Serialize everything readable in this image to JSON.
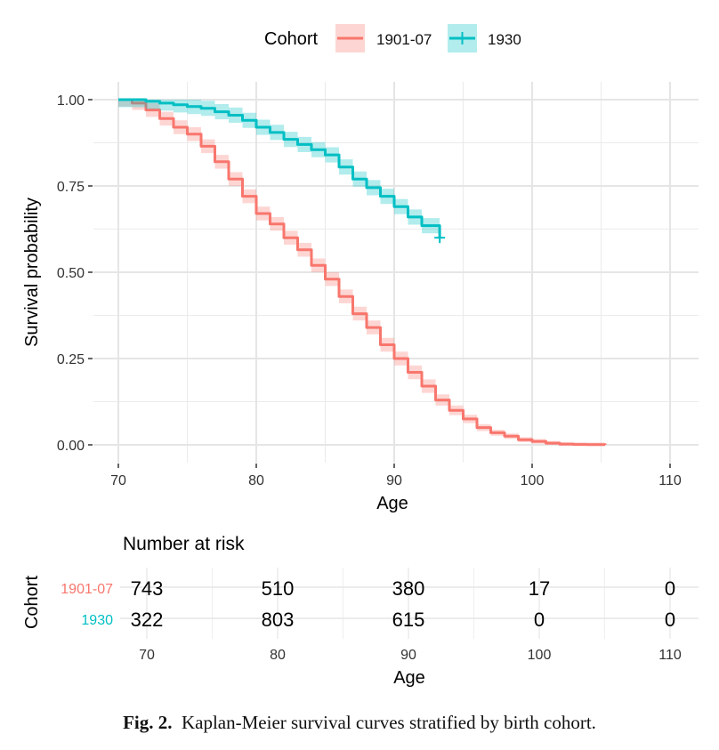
{
  "chart_data": {
    "type": "line",
    "subtype": "kaplan-meier",
    "title": "",
    "xlabel": "Age",
    "ylabel": "Survival probability",
    "xlim": [
      70,
      110
    ],
    "ylim": [
      0,
      1
    ],
    "x_ticks": [
      "70",
      "80",
      "90",
      "100",
      "110"
    ],
    "y_ticks": [
      "0.00",
      "0.25",
      "0.50",
      "0.75",
      "1.00"
    ],
    "grid": true,
    "legend": {
      "title": "Cohort",
      "position": "top",
      "entries": [
        "1901-07",
        "1930"
      ]
    },
    "series": [
      {
        "name": "1901-07",
        "color": "#F8766D",
        "band_color": "#F8766D",
        "x": [
          70,
          71,
          72,
          73,
          74,
          75,
          76,
          77,
          78,
          79,
          80,
          81,
          82,
          83,
          84,
          85,
          86,
          87,
          88,
          89,
          90,
          91,
          92,
          93,
          94,
          95,
          96,
          97,
          98,
          99,
          100,
          101,
          102,
          103,
          104,
          105.3
        ],
        "values": [
          1.0,
          0.99,
          0.97,
          0.945,
          0.92,
          0.9,
          0.865,
          0.82,
          0.77,
          0.72,
          0.67,
          0.64,
          0.6,
          0.565,
          0.52,
          0.48,
          0.43,
          0.38,
          0.34,
          0.29,
          0.25,
          0.21,
          0.17,
          0.13,
          0.1,
          0.075,
          0.05,
          0.035,
          0.025,
          0.015,
          0.01,
          0.005,
          0.002,
          0.001,
          0.0005,
          0.0
        ],
        "ci_halfwidth": 0.02,
        "censor_end": false
      },
      {
        "name": "1930",
        "color": "#00BFC4",
        "band_color": "#00BFC4",
        "x": [
          70,
          71,
          72,
          73,
          74,
          75,
          76,
          77,
          78,
          79,
          80,
          81,
          82,
          83,
          84,
          85,
          86,
          87,
          88,
          89,
          90,
          91,
          92,
          93.3
        ],
        "values": [
          1.0,
          1.0,
          0.995,
          0.99,
          0.985,
          0.98,
          0.975,
          0.965,
          0.955,
          0.94,
          0.92,
          0.905,
          0.885,
          0.87,
          0.855,
          0.84,
          0.805,
          0.77,
          0.745,
          0.72,
          0.69,
          0.66,
          0.635,
          0.6
        ],
        "ci_halfwidth": 0.022,
        "censor_end": true
      }
    ],
    "risk_table": {
      "title": "Number at risk",
      "ylabel": "Cohort",
      "xlabel": "Age",
      "x_ticks": [
        "70",
        "80",
        "90",
        "100",
        "110"
      ],
      "rows": [
        {
          "label": "1901-07",
          "color": "#F8766D",
          "values": [
            "743",
            "510",
            "380",
            "17",
            "0"
          ]
        },
        {
          "label": "1930",
          "color": "#00BFC4",
          "values": [
            "322",
            "803",
            "615",
            "0",
            "0"
          ]
        }
      ]
    }
  },
  "caption": {
    "label": "Fig. 2.",
    "text": "Kaplan-Meier survival curves stratified by birth cohort."
  }
}
